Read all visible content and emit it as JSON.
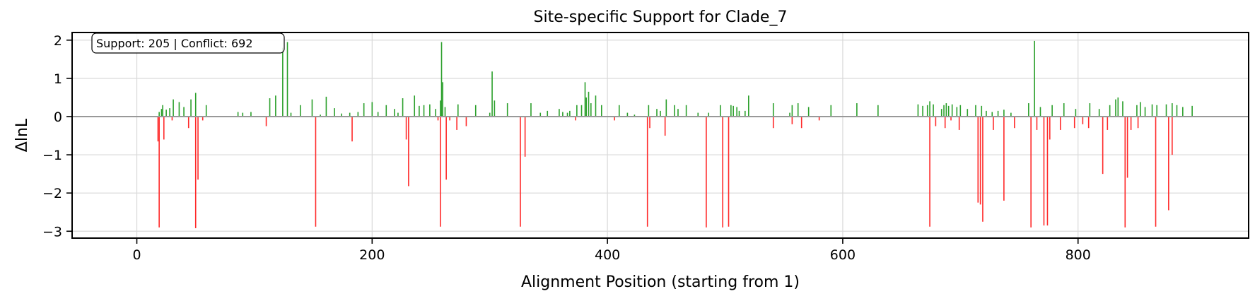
{
  "chart_data": {
    "type": "bar",
    "title": "Site-specific Support for Clade_7",
    "xlabel": "Alignment Position (starting from 1)",
    "ylabel": "ΔlnL",
    "xlim": [
      -55,
      945
    ],
    "ylim": [
      -3.18,
      2.2
    ],
    "xticks": [
      0,
      200,
      400,
      600,
      800
    ],
    "xtick_labels": [
      "0",
      "200",
      "400",
      "600",
      "800"
    ],
    "yticks": [
      -3,
      -2,
      -1,
      0,
      1,
      2
    ],
    "ytick_labels": [
      "−3",
      "−2",
      "−1",
      "0",
      "1",
      "2"
    ],
    "grid": true,
    "annotation": "Support: 205 | Conflict: 692",
    "colors": {
      "support": "#2ca02c",
      "conflict": "#ff2a2a",
      "zero_line": "#999999"
    },
    "series": [
      {
        "name": "",
        "color": "#2ca02c",
        "x": [
          19,
          21,
          22,
          25,
          28,
          31,
          36,
          40,
          46,
          50,
          59,
          86,
          90,
          97,
          113,
          118,
          124,
          128,
          131,
          139,
          149,
          156,
          161,
          168,
          174,
          181,
          188,
          193,
          200,
          205,
          212,
          219,
          222,
          226,
          236,
          240,
          244,
          249,
          254,
          258,
          259,
          260,
          262,
          273,
          288,
          300,
          302,
          304,
          315,
          335,
          343,
          349,
          359,
          362,
          366,
          368,
          374,
          378,
          381,
          382,
          384,
          386,
          390,
          395,
          410,
          417,
          423,
          435,
          442,
          445,
          450,
          457,
          460,
          467,
          477,
          486,
          496,
          505,
          507,
          510,
          512,
          517,
          520,
          541,
          555,
          557,
          562,
          571,
          590,
          612,
          630,
          664,
          668,
          672,
          674,
          677,
          684,
          686,
          688,
          690,
          693,
          697,
          700,
          706,
          713,
          718,
          722,
          727,
          732,
          737,
          743,
          758,
          763,
          768,
          778,
          788,
          798,
          810,
          818,
          827,
          832,
          834,
          838,
          850,
          853,
          857,
          863,
          867,
          875,
          880,
          884,
          889,
          897
        ],
        "values": [
          0.12,
          0.2,
          0.3,
          0.18,
          0.22,
          0.45,
          0.38,
          0.25,
          0.45,
          0.62,
          0.3,
          0.12,
          0.1,
          0.12,
          0.48,
          0.55,
          1.8,
          1.95,
          0.1,
          0.3,
          0.45,
          0.05,
          0.52,
          0.22,
          0.08,
          0.1,
          0.12,
          0.35,
          0.38,
          0.12,
          0.3,
          0.2,
          0.1,
          0.48,
          0.55,
          0.28,
          0.3,
          0.32,
          0.2,
          0.42,
          1.95,
          0.9,
          0.25,
          0.32,
          0.3,
          0.1,
          1.18,
          0.42,
          0.35,
          0.35,
          0.1,
          0.15,
          0.2,
          0.12,
          0.1,
          0.15,
          0.3,
          0.3,
          0.9,
          0.5,
          0.65,
          0.35,
          0.55,
          0.3,
          0.3,
          0.1,
          0.05,
          0.3,
          0.2,
          0.15,
          0.45,
          0.3,
          0.2,
          0.3,
          0.1,
          0.1,
          0.3,
          0.3,
          0.28,
          0.25,
          0.15,
          0.15,
          0.55,
          0.35,
          0.1,
          0.3,
          0.35,
          0.25,
          0.3,
          0.35,
          0.3,
          0.32,
          0.28,
          0.3,
          0.4,
          0.32,
          0.2,
          0.3,
          0.35,
          0.28,
          0.32,
          0.25,
          0.3,
          0.2,
          0.3,
          0.28,
          0.15,
          0.12,
          0.15,
          0.18,
          0.1,
          0.35,
          1.98,
          0.25,
          0.3,
          0.35,
          0.2,
          0.35,
          0.2,
          0.3,
          0.45,
          0.5,
          0.4,
          0.3,
          0.38,
          0.25,
          0.32,
          0.3,
          0.32,
          0.35,
          0.3,
          0.25,
          0.28
        ]
      },
      {
        "name": "",
        "color": "#ff2a2a",
        "x": [
          18,
          19,
          23,
          30,
          44,
          50,
          52,
          56,
          110,
          152,
          183,
          229,
          231,
          256,
          258,
          263,
          266,
          272,
          280,
          326,
          330,
          373,
          406,
          434,
          436,
          449,
          484,
          498,
          503,
          541,
          557,
          565,
          580,
          674,
          679,
          687,
          692,
          699,
          715,
          717,
          719,
          728,
          737,
          746,
          760,
          765,
          771,
          774,
          776,
          785,
          797,
          804,
          809,
          821,
          825,
          840,
          842,
          845,
          851,
          866,
          877,
          880
        ],
        "values": [
          -0.65,
          -2.9,
          -0.6,
          -0.1,
          -0.3,
          -2.92,
          -1.65,
          -0.1,
          -0.25,
          -2.88,
          -0.65,
          -0.6,
          -1.82,
          -0.1,
          -2.88,
          -1.65,
          -0.1,
          -0.35,
          -0.25,
          -2.88,
          -1.05,
          -0.1,
          -0.1,
          -2.88,
          -0.3,
          -0.5,
          -2.9,
          -2.9,
          -2.88,
          -0.3,
          -0.2,
          -0.3,
          -0.1,
          -2.88,
          -0.25,
          -0.3,
          -0.1,
          -0.35,
          -2.25,
          -2.3,
          -2.75,
          -0.35,
          -2.2,
          -0.3,
          -2.9,
          -0.35,
          -2.85,
          -2.85,
          -0.6,
          -0.35,
          -0.3,
          -0.2,
          -0.3,
          -1.5,
          -0.35,
          -2.9,
          -1.6,
          -0.35,
          -0.3,
          -2.88,
          -2.45,
          -1.0
        ]
      }
    ]
  }
}
